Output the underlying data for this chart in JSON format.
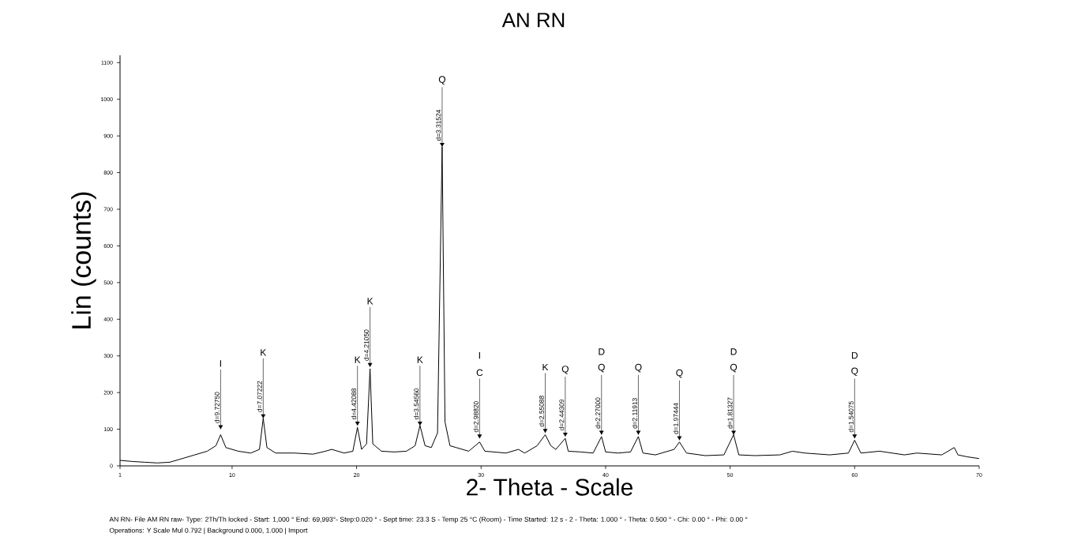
{
  "chart_data": {
    "type": "line",
    "title": "AN RN",
    "xlabel": "2- Theta - Scale",
    "ylabel": "Lin (counts)",
    "xlim": [
      1,
      70
    ],
    "ylim": [
      0,
      1120
    ],
    "xticks": [
      1,
      10,
      20,
      30,
      40,
      50,
      60,
      70
    ],
    "yticks": [
      0,
      100,
      200,
      300,
      400,
      500,
      600,
      700,
      800,
      900,
      1000,
      1100
    ],
    "grid": false,
    "marker": "none",
    "line_style": "solid",
    "series": [
      {
        "color": "#000000",
        "x": [
          1,
          2,
          3,
          4,
          5,
          6,
          7,
          8,
          8.7,
          9.08,
          9.5,
          10.5,
          11.5,
          12.2,
          12.5,
          12.8,
          13.5,
          15,
          16.5,
          17.5,
          18,
          19,
          19.7,
          20.07,
          20.4,
          20.8,
          21.08,
          21.3,
          22,
          23,
          24,
          24.7,
          25.09,
          25.5,
          26,
          26.5,
          26.87,
          27.1,
          27.5,
          28,
          29,
          29.88,
          30.3,
          31,
          32,
          33,
          33.5,
          34.5,
          35.15,
          35.6,
          36,
          36.76,
          37,
          38,
          39,
          39.67,
          40,
          41,
          42,
          42.63,
          43,
          44,
          45.5,
          45.93,
          46.5,
          48,
          49.5,
          50.28,
          50.7,
          52,
          54,
          55,
          56,
          58,
          59.5,
          60,
          60.5,
          62,
          64,
          65,
          67,
          68,
          68.3,
          69,
          69.993
        ],
        "values": [
          15,
          12,
          10,
          8,
          10,
          20,
          30,
          40,
          55,
          85,
          50,
          40,
          35,
          45,
          130,
          50,
          35,
          35,
          32,
          40,
          45,
          35,
          40,
          105,
          45,
          60,
          265,
          60,
          40,
          38,
          40,
          55,
          110,
          55,
          50,
          90,
          870,
          120,
          55,
          50,
          40,
          65,
          40,
          38,
          35,
          45,
          35,
          55,
          85,
          55,
          45,
          75,
          40,
          38,
          35,
          80,
          38,
          35,
          38,
          80,
          35,
          30,
          45,
          65,
          35,
          28,
          30,
          85,
          30,
          28,
          30,
          40,
          35,
          30,
          35,
          70,
          35,
          40,
          30,
          35,
          30,
          50,
          30,
          25,
          20
        ]
      }
    ],
    "annotations": [
      {
        "text": "d=9.72750",
        "x": 9.08,
        "y": 100
      },
      {
        "text": "I",
        "x": 9.08,
        "y": 100
      },
      {
        "text": "d=7.07222",
        "x": 12.5,
        "y": 130
      },
      {
        "text": "K",
        "x": 12.5,
        "y": 130
      },
      {
        "text": "d=4.42088",
        "x": 20.07,
        "y": 110
      },
      {
        "text": "K",
        "x": 20.07,
        "y": 110
      },
      {
        "text": "d=4.21050",
        "x": 21.08,
        "y": 270
      },
      {
        "text": "K",
        "x": 21.08,
        "y": 270
      },
      {
        "text": "d=3.54560",
        "x": 25.09,
        "y": 110
      },
      {
        "text": "K",
        "x": 25.09,
        "y": 110
      },
      {
        "text": "d=3.31524",
        "x": 26.87,
        "y": 870
      },
      {
        "text": "Q",
        "x": 26.87,
        "y": 870
      },
      {
        "text": "d=2.98820",
        "x": 29.88,
        "y": 75
      },
      {
        "text": "C",
        "x": 29.88,
        "y": 75
      },
      "I",
      {
        "text": "d=2.55088",
        "x": 35.15,
        "y": 90
      },
      {
        "text": "K",
        "x": 35.15,
        "y": 90
      },
      {
        "text": "d=2.44309",
        "x": 36.76,
        "y": 80
      },
      {
        "text": "Q",
        "x": 36.76,
        "y": 80
      },
      {
        "text": "d=2.27000",
        "x": 39.67,
        "y": 85
      },
      {
        "text": "Q",
        "x": 39.67,
        "y": 85
      },
      "D",
      {
        "text": "d=2.11913",
        "x": 42.63,
        "y": 85
      },
      {
        "text": "Q",
        "x": 42.63,
        "y": 85
      },
      {
        "text": "d=1.97444",
        "x": 45.93,
        "y": 70
      },
      {
        "text": "Q",
        "x": 45.93,
        "y": 70
      },
      {
        "text": "d=1.81327",
        "x": 50.28,
        "y": 85
      },
      {
        "text": "Q",
        "x": 50.28,
        "y": 85
      },
      "D",
      {
        "text": "d=1.54075",
        "x": 60,
        "y": 75
      },
      {
        "text": "Q",
        "x": 60,
        "y": 75
      },
      "D",
      "AN RN- File AM RN raw- Type: 2Th/Th locked - Start: 1,000 ° End: 69,993°- Step:0.020 ° - Sept time: 23.3 S - Temp 25 °C (Room) - Time Started: 12 s - 2 - Theta: 1.000 ° - Theta: 0.500 ° - Chi: 0.00 ° - Phi: 0.00 °",
      "Operations: Y Scale Mul 0.792 | Background 0.000, 1.000 | Import"
    ]
  }
}
